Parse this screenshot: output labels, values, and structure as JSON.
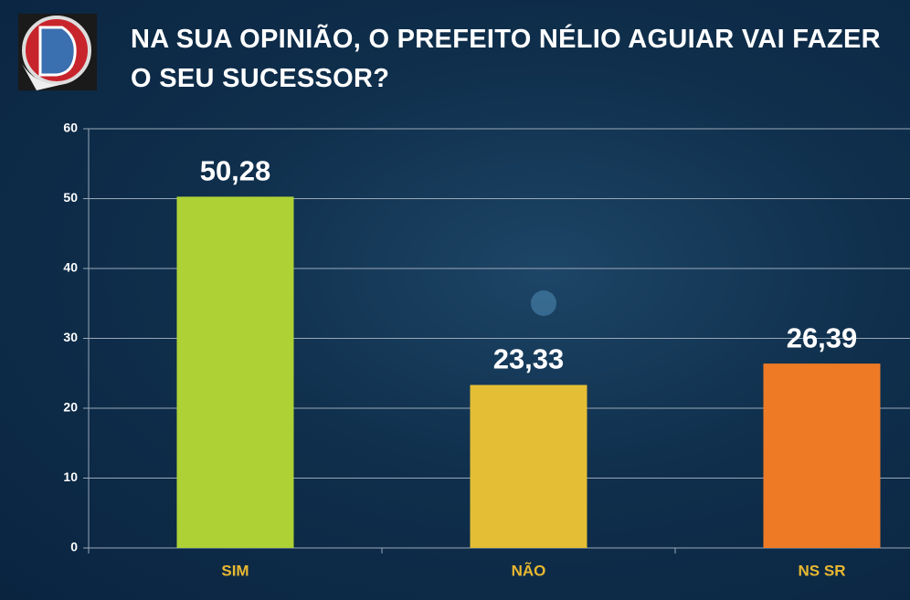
{
  "chart_data": {
    "type": "bar",
    "title": "NA SUA OPINIÃO, O PREFEITO NÉLIO AGUIAR VAI FAZER O SEU SUCESSOR?",
    "categories": [
      "SIM",
      "NÃO",
      "NS SR"
    ],
    "values": [
      50.28,
      23.33,
      26.39
    ],
    "value_labels": [
      "50,28",
      "23,33",
      "26,39"
    ],
    "colors": [
      "#aed136",
      "#e4bf36",
      "#ee7a26"
    ],
    "ylim": [
      0,
      60
    ],
    "yticks": [
      0,
      10,
      20,
      30,
      40,
      50,
      60
    ],
    "grid": true
  }
}
